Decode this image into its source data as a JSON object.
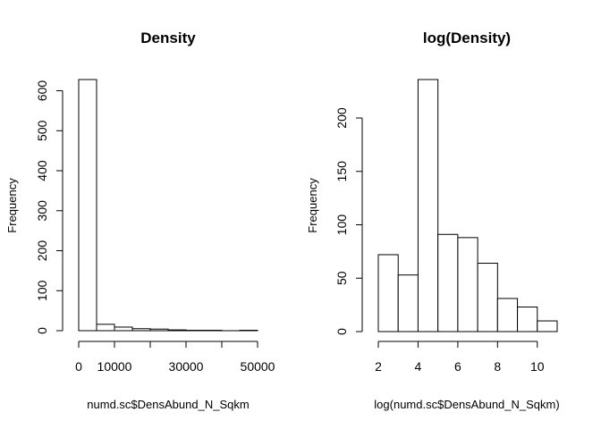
{
  "chart_data": [
    {
      "type": "bar",
      "title": "Density",
      "xlabel": "numd.sc$DensAbund_N_Sqkm",
      "ylabel": "Frequency",
      "bin_edges": [
        0,
        5000,
        10000,
        15000,
        20000,
        25000,
        30000,
        35000,
        40000,
        45000,
        50000
      ],
      "values": [
        628,
        16,
        9,
        5,
        4,
        2,
        1,
        1,
        0,
        1
      ],
      "xlim": [
        0,
        50000
      ],
      "ylim": [
        0,
        628
      ],
      "xticks": [
        0,
        10000,
        30000,
        50000
      ],
      "xtick_labels": [
        "0",
        "10000",
        "30000",
        "50000"
      ],
      "xticks_minor": [
        20000,
        40000
      ],
      "yticks": [
        0,
        100,
        200,
        300,
        400,
        500,
        600
      ],
      "ytick_labels": [
        "0",
        "100",
        "200",
        "300",
        "400",
        "500",
        "600"
      ],
      "grid": false
    },
    {
      "type": "bar",
      "title": "log(Density)",
      "xlabel": "log(numd.sc$DensAbund_N_Sqkm)",
      "ylabel": "Frequency",
      "bin_edges": [
        2,
        3,
        4,
        5,
        6,
        7,
        8,
        9,
        10,
        11
      ],
      "values": [
        72,
        53,
        236,
        91,
        88,
        64,
        31,
        23,
        10
      ],
      "xlim": [
        2,
        11
      ],
      "ylim": [
        0,
        236
      ],
      "xticks": [
        2,
        4,
        6,
        8,
        10
      ],
      "xtick_labels": [
        "2",
        "4",
        "6",
        "8",
        "10"
      ],
      "yticks": [
        0,
        50,
        100,
        150,
        200
      ],
      "ytick_labels": [
        "0",
        "50",
        "100",
        "150",
        "200"
      ],
      "grid": false
    }
  ]
}
